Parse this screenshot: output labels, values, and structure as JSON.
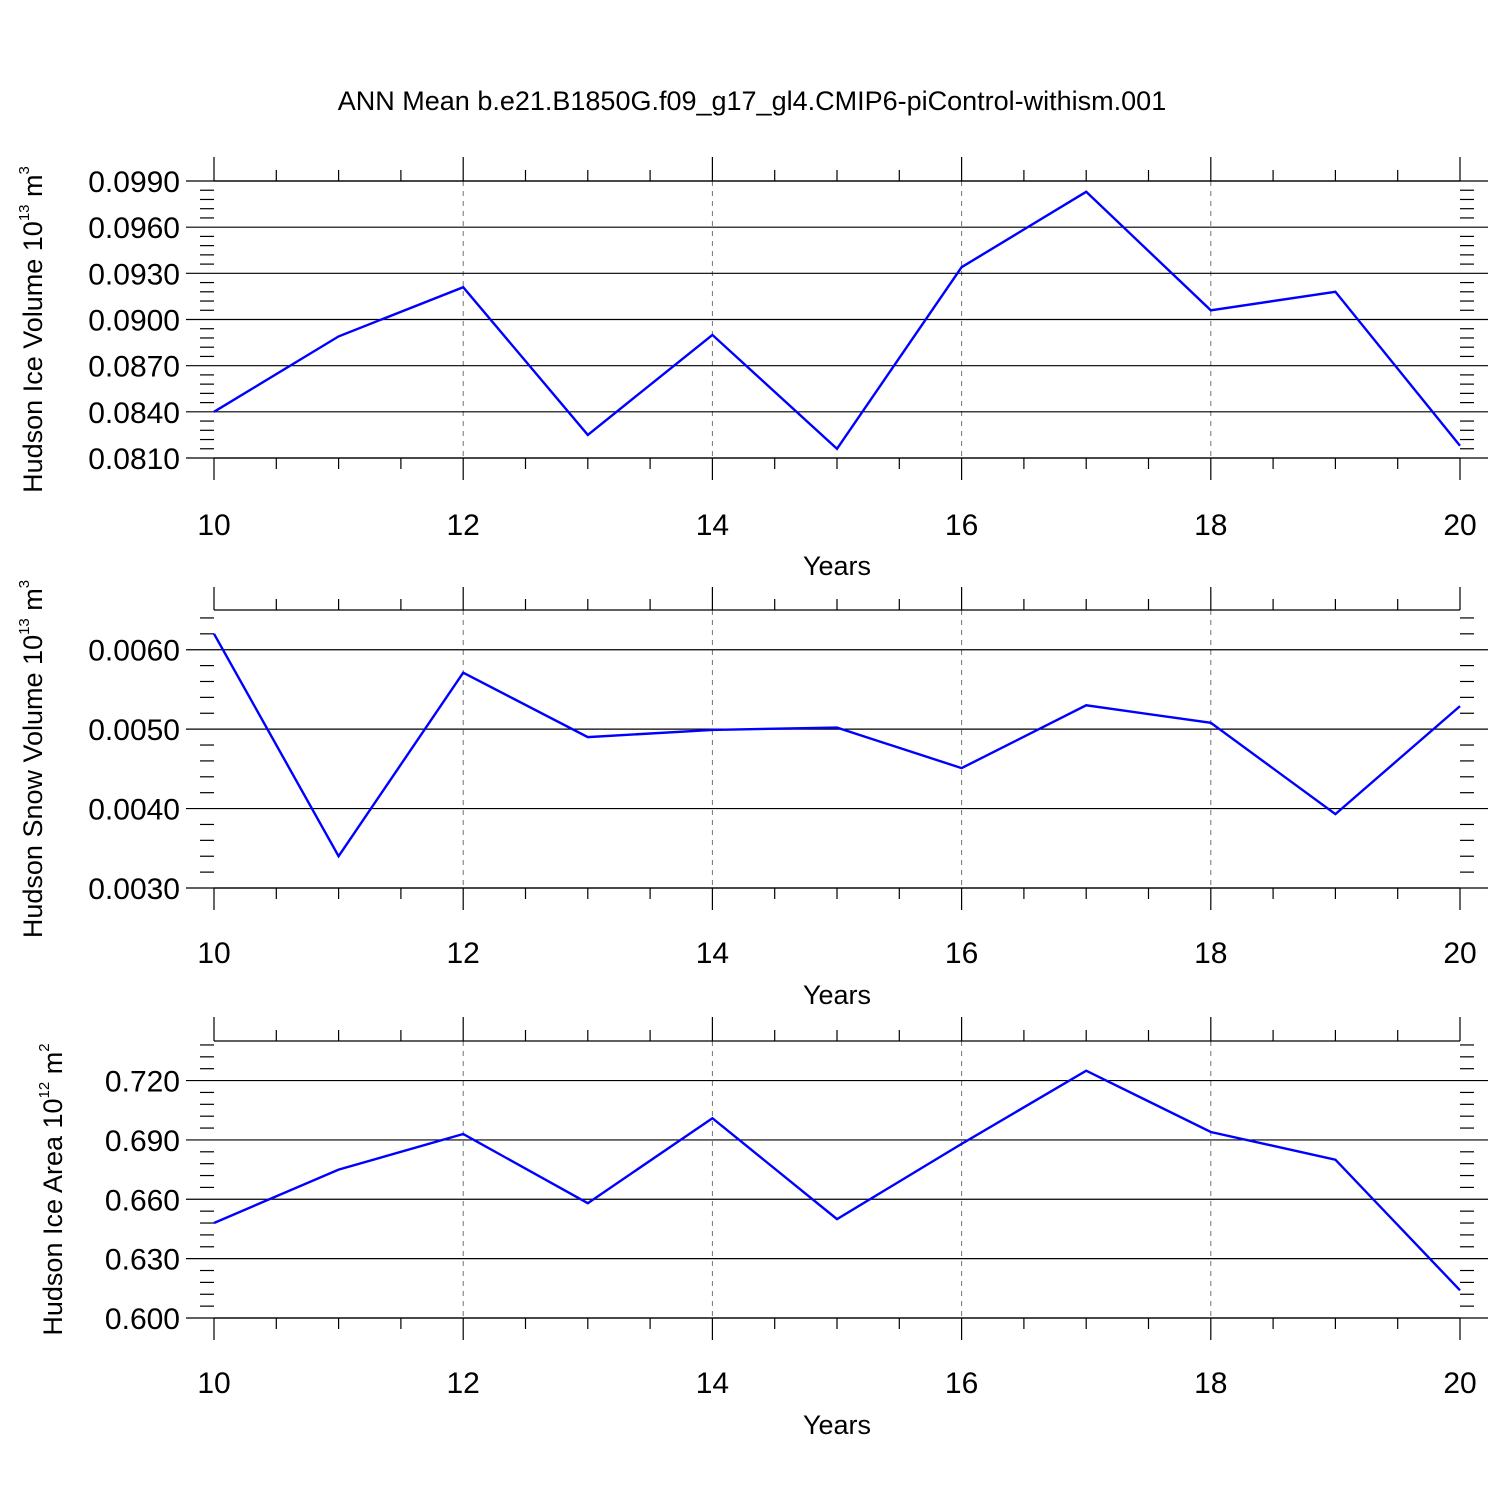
{
  "title": "ANN Mean b.e21.B1850G.f09_g17_gl4.CMIP6-piControl-withism.001",
  "chart_data": [
    {
      "type": "line",
      "xlabel": "Years",
      "ylabel": {
        "text": "Hudson Ice Volume 10",
        "exp": "13",
        "unit": " m",
        "unit_exp": "3"
      },
      "xlim": [
        10,
        20
      ],
      "ylim": [
        0.081,
        0.099
      ],
      "xticks": [
        10,
        12,
        14,
        16,
        18,
        20
      ],
      "xtick_labels": [
        "10",
        "12",
        "14",
        "16",
        "18",
        "20"
      ],
      "yticks": [
        0.081,
        0.084,
        0.087,
        0.09,
        0.093,
        0.096,
        0.099
      ],
      "ytick_labels": [
        "0.0810",
        "0.0840",
        "0.0870",
        "0.0900",
        "0.0930",
        "0.0960",
        "0.0990"
      ],
      "grid": "x-major-dashed",
      "color": "#0000ff",
      "x": [
        10,
        11,
        12,
        13,
        14,
        15,
        16,
        17,
        18,
        19,
        20
      ],
      "y": [
        0.084,
        0.0889,
        0.0921,
        0.0825,
        0.089,
        0.0816,
        0.0934,
        0.0983,
        0.0906,
        0.0918,
        0.0818
      ]
    },
    {
      "type": "line",
      "xlabel": "Years",
      "ylabel": {
        "text": "Hudson Snow Volume 10",
        "exp": "13",
        "unit": " m",
        "unit_exp": "3"
      },
      "xlim": [
        10,
        20
      ],
      "ylim": [
        0.003,
        0.0065
      ],
      "xticks": [
        10,
        12,
        14,
        16,
        18,
        20
      ],
      "xtick_labels": [
        "10",
        "12",
        "14",
        "16",
        "18",
        "20"
      ],
      "yticks": [
        0.003,
        0.004,
        0.005,
        0.006
      ],
      "ytick_labels": [
        "0.0030",
        "0.0040",
        "0.0050",
        "0.0060"
      ],
      "grid": "x-major-dashed",
      "color": "#0000ff",
      "x": [
        10,
        11,
        12,
        13,
        14,
        15,
        16,
        17,
        18,
        19,
        20
      ],
      "y": [
        0.0062,
        0.0034,
        0.00571,
        0.0049,
        0.00499,
        0.00502,
        0.00451,
        0.0053,
        0.00508,
        0.00393,
        0.00529
      ]
    },
    {
      "type": "line",
      "xlabel": "Years",
      "ylabel": {
        "text": "Hudson Ice Area 10",
        "exp": "12",
        "unit": " m",
        "unit_exp": "2"
      },
      "xlim": [
        10,
        20
      ],
      "ylim": [
        0.6,
        0.74
      ],
      "xticks": [
        10,
        12,
        14,
        16,
        18,
        20
      ],
      "xtick_labels": [
        "10",
        "12",
        "14",
        "16",
        "18",
        "20"
      ],
      "yticks": [
        0.6,
        0.63,
        0.66,
        0.69,
        0.72
      ],
      "ytick_labels": [
        "0.600",
        "0.630",
        "0.660",
        "0.690",
        "0.720"
      ],
      "grid": "x-major-dashed",
      "color": "#0000ff",
      "x": [
        10,
        11,
        12,
        13,
        14,
        15,
        16,
        17,
        18,
        19,
        20
      ],
      "y": [
        0.648,
        0.675,
        0.693,
        0.658,
        0.701,
        0.65,
        0.688,
        0.725,
        0.694,
        0.68,
        0.614
      ]
    }
  ]
}
